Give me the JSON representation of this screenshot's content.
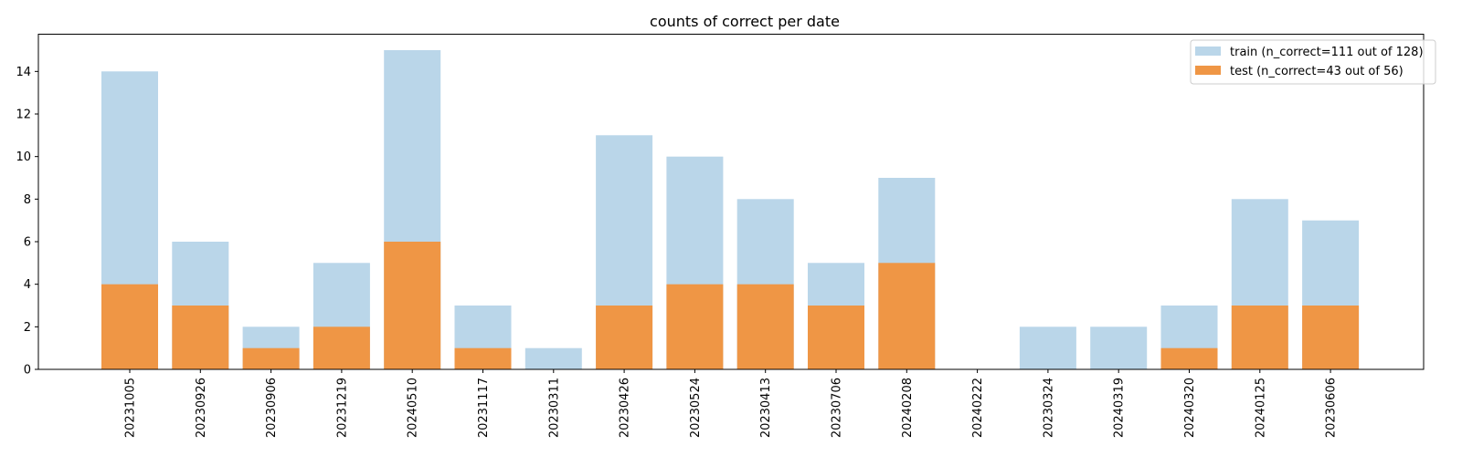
{
  "chart_data": {
    "type": "bar",
    "title": "counts of correct per date",
    "xlabel": "",
    "ylabel": "",
    "ylim": [
      0,
      15.75
    ],
    "yticks": [
      0,
      2,
      4,
      6,
      8,
      10,
      12,
      14
    ],
    "categories": [
      "20231005",
      "20230926",
      "20230906",
      "20231219",
      "20240510",
      "20231117",
      "20230311",
      "20230426",
      "20230524",
      "20230413",
      "20230706",
      "20240208",
      "20240222",
      "20230324",
      "20240319",
      "20240320",
      "20240125",
      "20230606"
    ],
    "series": [
      {
        "name": "train (n_correct=111 out of 128)",
        "color": "#bad6e9",
        "values": [
          14,
          6,
          2,
          5,
          15,
          3,
          1,
          11,
          10,
          8,
          5,
          9,
          0,
          2,
          2,
          3,
          8,
          7
        ]
      },
      {
        "name": "test (n_correct=43 out of 56)",
        "color": "#ef9645",
        "values": [
          4,
          3,
          1,
          2,
          6,
          1,
          0,
          3,
          4,
          4,
          3,
          5,
          0,
          0,
          0,
          1,
          3,
          3
        ]
      }
    ],
    "legend": "top-right",
    "grid": false
  }
}
